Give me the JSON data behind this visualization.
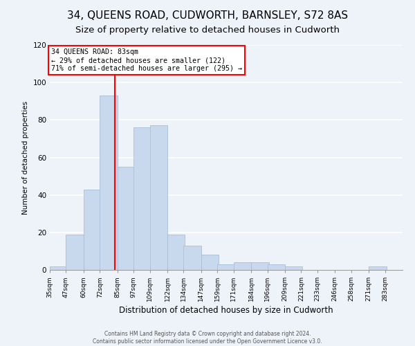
{
  "title": "34, QUEENS ROAD, CUDWORTH, BARNSLEY, S72 8AS",
  "subtitle": "Size of property relative to detached houses in Cudworth",
  "xlabel": "Distribution of detached houses by size in Cudworth",
  "ylabel": "Number of detached properties",
  "bar_color": "#c8d9ed",
  "bar_edge_color": "#a8bfd8",
  "vline_x": 83,
  "vline_color": "red",
  "annotation_title": "34 QUEENS ROAD: 83sqm",
  "annotation_line1": "← 29% of detached houses are smaller (122)",
  "annotation_line2": "71% of semi-detached houses are larger (295) →",
  "annotation_box_color": "white",
  "annotation_box_edge": "red",
  "bins_left": [
    35,
    47,
    60,
    72,
    85,
    97,
    109,
    122,
    134,
    147,
    159,
    171,
    184,
    196,
    209,
    221,
    233,
    246,
    258,
    271
  ],
  "bin_width": 13,
  "heights": [
    2,
    19,
    43,
    93,
    55,
    76,
    77,
    19,
    13,
    8,
    3,
    4,
    4,
    3,
    2,
    0,
    0,
    0,
    0,
    2
  ],
  "xtick_labels": [
    "35sqm",
    "47sqm",
    "60sqm",
    "72sqm",
    "85sqm",
    "97sqm",
    "109sqm",
    "122sqm",
    "134sqm",
    "147sqm",
    "159sqm",
    "171sqm",
    "184sqm",
    "196sqm",
    "209sqm",
    "221sqm",
    "233sqm",
    "246sqm",
    "258sqm",
    "271sqm",
    "283sqm"
  ],
  "xtick_positions": [
    35,
    47,
    60,
    72,
    85,
    97,
    109,
    122,
    134,
    147,
    159,
    171,
    184,
    196,
    209,
    221,
    233,
    246,
    258,
    271,
    283
  ],
  "ylim": [
    0,
    120
  ],
  "yticks": [
    0,
    20,
    40,
    60,
    80,
    100,
    120
  ],
  "footer_line1": "Contains HM Land Registry data © Crown copyright and database right 2024.",
  "footer_line2": "Contains public sector information licensed under the Open Government Licence v3.0.",
  "background_color": "#eef2f9",
  "grid_color": "white",
  "title_fontsize": 11,
  "subtitle_fontsize": 9.5
}
